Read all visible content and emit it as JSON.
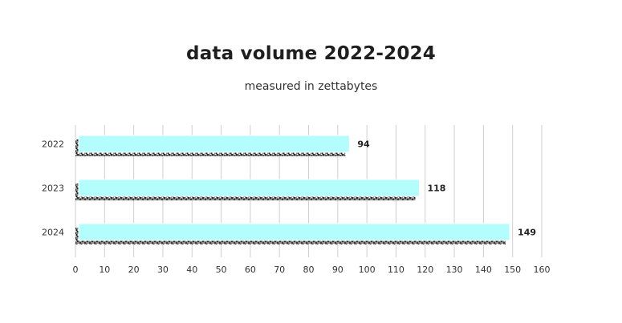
{
  "chart_data": {
    "type": "bar",
    "orientation": "horizontal",
    "title": "data volume 2022-2024",
    "subtitle": "measured in zettabytes",
    "categories": [
      "2022",
      "2023",
      "2024"
    ],
    "values": [
      94,
      118,
      149
    ],
    "xlim": [
      0,
      160
    ],
    "xticks": [
      0,
      10,
      20,
      30,
      40,
      50,
      60,
      70,
      80,
      90,
      100,
      110,
      120,
      130,
      140,
      150,
      160
    ],
    "grid": true,
    "bar_color": "#b3fdfd",
    "shadow_color": "#555555"
  }
}
